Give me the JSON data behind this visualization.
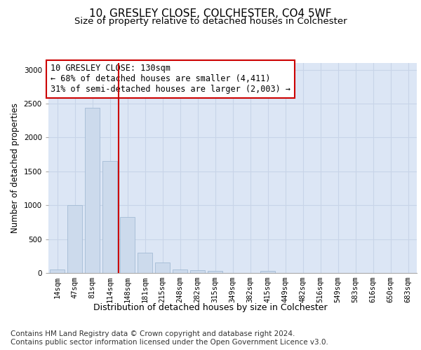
{
  "title_line1": "10, GRESLEY CLOSE, COLCHESTER, CO4 5WF",
  "title_line2": "Size of property relative to detached houses in Colchester",
  "xlabel": "Distribution of detached houses by size in Colchester",
  "ylabel": "Number of detached properties",
  "footer_line1": "Contains HM Land Registry data © Crown copyright and database right 2024.",
  "footer_line2": "Contains public sector information licensed under the Open Government Licence v3.0.",
  "annotation_line1": "10 GRESLEY CLOSE: 130sqm",
  "annotation_line2": "← 68% of detached houses are smaller (4,411)",
  "annotation_line3": "31% of semi-detached houses are larger (2,003) →",
  "bar_labels": [
    "14sqm",
    "47sqm",
    "81sqm",
    "114sqm",
    "148sqm",
    "181sqm",
    "215sqm",
    "248sqm",
    "282sqm",
    "315sqm",
    "349sqm",
    "382sqm",
    "415sqm",
    "449sqm",
    "482sqm",
    "516sqm",
    "549sqm",
    "583sqm",
    "616sqm",
    "650sqm",
    "683sqm"
  ],
  "bar_values": [
    55,
    1000,
    2440,
    1650,
    830,
    300,
    150,
    55,
    40,
    30,
    0,
    0,
    35,
    0,
    0,
    0,
    0,
    0,
    0,
    0,
    0
  ],
  "bar_color": "#ccdaec",
  "bar_edgecolor": "#9ab4d0",
  "vline_color": "#cc0000",
  "vline_x_idx": 3.5,
  "ylim": [
    0,
    3100
  ],
  "yticks": [
    0,
    500,
    1000,
    1500,
    2000,
    2500,
    3000
  ],
  "grid_color": "#c8d4e8",
  "bg_color": "#dce6f5",
  "annotation_box_edgecolor": "#cc0000",
  "annotation_fontsize": 8.5,
  "title1_fontsize": 11,
  "title2_fontsize": 9.5,
  "xlabel_fontsize": 9,
  "ylabel_fontsize": 8.5,
  "tick_fontsize": 7.5,
  "footer_fontsize": 7.5
}
